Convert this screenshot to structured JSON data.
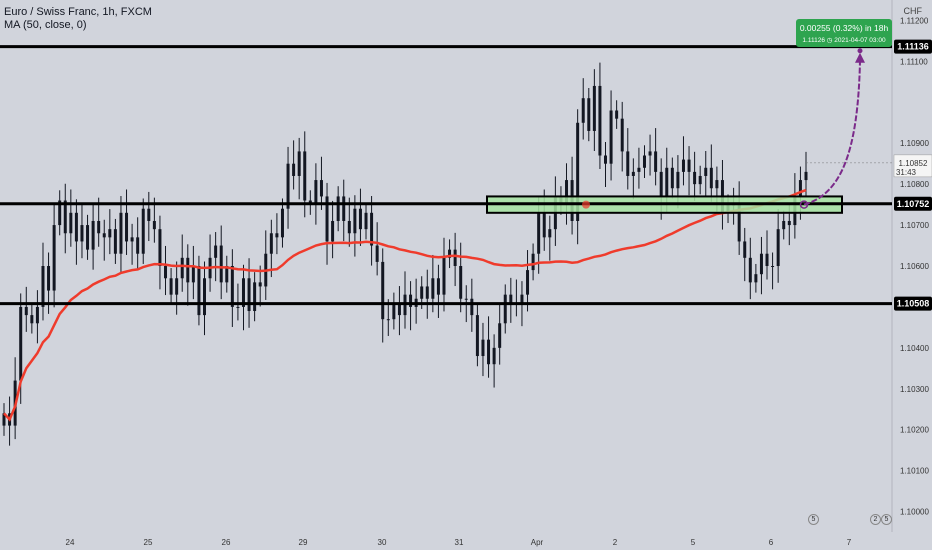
{
  "legend": {
    "symbol": "Euro / Swiss Franc, 1h, FXCM",
    "indicator": "MA (50, close, 0)"
  },
  "currency": "CHF",
  "colors": {
    "background": "#d1d4dc",
    "candle": "#131722",
    "ma_line": "#ef3b2c",
    "zone_fill": "#a6e3a1",
    "arrow": "#7b2a8a",
    "label_green": "#2ea44f",
    "level_line": "#000000"
  },
  "chart_data": {
    "type": "candlestick",
    "x_tick_labels": [
      "24",
      "25",
      "26",
      "29",
      "30",
      "31",
      "Apr",
      "2",
      "5",
      "6",
      "7"
    ],
    "ylim": [
      1.0995,
      1.1125
    ],
    "y_tick_labels": [
      "1.11200",
      "1.11100",
      "1.10900",
      "1.10800",
      "1.10700",
      "1.10600",
      "1.10400",
      "1.10300",
      "1.10200",
      "1.10100",
      "1.10000"
    ],
    "horizontal_levels": [
      "1.11136",
      "1.10752",
      "1.10508"
    ],
    "last_price": "1.10852",
    "countdown": "31:43",
    "support_zone": {
      "low": 1.1073,
      "high": 1.1077
    },
    "projection": {
      "label_line1": "0.00255 (0.32%) in 18h",
      "label_line2": "1.11126 ◷ 2021-04-07 03:00",
      "target": 1.11126
    },
    "candles_close": [
      1.1024,
      1.1021,
      1.1032,
      1.105,
      1.1048,
      1.1046,
      1.105,
      1.106,
      1.1054,
      1.107,
      1.1076,
      1.1068,
      1.1073,
      1.1066,
      1.107,
      1.1064,
      1.1071,
      1.1068,
      1.1067,
      1.1069,
      1.1063,
      1.1073,
      1.1066,
      1.1067,
      1.1063,
      1.1074,
      1.1071,
      1.1069,
      1.106,
      1.1057,
      1.1053,
      1.1057,
      1.1062,
      1.1056,
      1.106,
      1.1048,
      1.1057,
      1.1062,
      1.1065,
      1.1056,
      1.106,
      1.105,
      1.105,
      1.1057,
      1.1049,
      1.1056,
      1.1055,
      1.1063,
      1.1068,
      1.1067,
      1.1074,
      1.1085,
      1.1082,
      1.1088,
      1.1076,
      1.1075,
      1.1081,
      1.1077,
      1.1066,
      1.1071,
      1.1077,
      1.1071,
      1.1068,
      1.1074,
      1.1069,
      1.1073,
      1.1065,
      1.1061,
      1.1047,
      1.1047,
      1.1051,
      1.1048,
      1.1053,
      1.105,
      1.1052,
      1.1055,
      1.1052,
      1.1057,
      1.1053,
      1.1062,
      1.1064,
      1.106,
      1.1052,
      1.1052,
      1.1048,
      1.1038,
      1.1042,
      1.1036,
      1.104,
      1.1046,
      1.1053,
      1.1051,
      1.1051,
      1.1053,
      1.1059,
      1.1063,
      1.1073,
      1.1067,
      1.1069,
      1.1077,
      1.1075,
      1.1081,
      1.1071,
      1.1095,
      1.1101,
      1.1093,
      1.1104,
      1.1087,
      1.1085,
      1.1098,
      1.1096,
      1.1088,
      1.1082,
      1.1083,
      1.1084,
      1.1087,
      1.1088,
      1.1083,
      1.1077,
      1.1084,
      1.1079,
      1.1083,
      1.1086,
      1.1083,
      1.108,
      1.1082,
      1.1084,
      1.1079,
      1.1081,
      1.1073,
      1.1075,
      1.1075,
      1.1066,
      1.1062,
      1.1056,
      1.1058,
      1.1063,
      1.106,
      1.106,
      1.1069,
      1.1071,
      1.107,
      1.1077,
      1.1081,
      1.1083
    ]
  }
}
